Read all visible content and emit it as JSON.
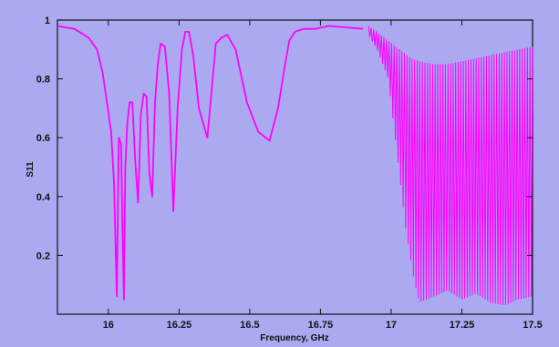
{
  "chart_data": {
    "type": "line",
    "title": "",
    "xlabel": "Frequency, GHz",
    "ylabel": "S11",
    "xlim": [
      15.82,
      17.5
    ],
    "ylim": [
      0,
      1
    ],
    "x_ticks": [
      "16",
      "16.25",
      "16.5",
      "16.75",
      "17",
      "17.25",
      "17.5"
    ],
    "y_ticks": [
      "0.2",
      "0.4",
      "0.6",
      "0.8",
      "1"
    ],
    "grid": false,
    "legend": "none",
    "series": [
      {
        "name": "",
        "color": "#ff00ff",
        "x": [
          15.82,
          15.88,
          15.93,
          15.96,
          15.98,
          15.995,
          16.01,
          16.02,
          16.03,
          16.037,
          16.045,
          16.05,
          16.055,
          16.06,
          16.067,
          16.075,
          16.085,
          16.095,
          16.105,
          16.115,
          16.125,
          16.135,
          16.145,
          16.155,
          16.165,
          16.175,
          16.185,
          16.2,
          16.215,
          16.23,
          16.245,
          16.26,
          16.272,
          16.285,
          16.3,
          16.32,
          16.35,
          16.38,
          16.4,
          16.42,
          16.45,
          16.49,
          16.53,
          16.57,
          16.6,
          16.625,
          16.64,
          16.66,
          16.69,
          16.73,
          16.78,
          16.84,
          16.9,
          16.93,
          16.96,
          16.99,
          17.0,
          17.03,
          17.06,
          17.1,
          17.15,
          17.2,
          17.25,
          17.3,
          17.35,
          17.4,
          17.45,
          17.5
        ],
        "y": [
          0.98,
          0.97,
          0.94,
          0.9,
          0.82,
          0.72,
          0.62,
          0.45,
          0.06,
          0.6,
          0.58,
          0.3,
          0.05,
          0.5,
          0.65,
          0.72,
          0.72,
          0.52,
          0.38,
          0.68,
          0.75,
          0.74,
          0.48,
          0.4,
          0.72,
          0.85,
          0.92,
          0.91,
          0.75,
          0.35,
          0.7,
          0.9,
          0.96,
          0.96,
          0.88,
          0.7,
          0.6,
          0.92,
          0.94,
          0.95,
          0.9,
          0.72,
          0.62,
          0.59,
          0.7,
          0.85,
          0.93,
          0.96,
          0.97,
          0.97,
          0.98,
          0.975,
          0.97,
          0.96,
          0.94,
          0.91,
          0.9,
          0.88,
          0.86,
          0.85,
          0.84,
          0.85,
          0.86,
          0.87,
          0.88,
          0.89,
          0.9,
          0.9
        ],
        "envelope_upper": {
          "x": [
            16.92,
            16.95,
            16.99,
            17.03,
            17.07,
            17.1,
            17.15,
            17.2,
            17.25,
            17.3,
            17.35,
            17.4,
            17.45,
            17.5
          ],
          "y": [
            0.98,
            0.96,
            0.93,
            0.9,
            0.87,
            0.86,
            0.85,
            0.85,
            0.86,
            0.87,
            0.88,
            0.89,
            0.9,
            0.91
          ]
        },
        "envelope_lower": {
          "x": [
            16.92,
            16.95,
            16.99,
            17.02,
            17.05,
            17.08,
            17.1,
            17.15,
            17.2,
            17.25,
            17.3,
            17.35,
            17.4,
            17.45,
            17.5
          ],
          "y": [
            0.95,
            0.9,
            0.8,
            0.55,
            0.3,
            0.12,
            0.04,
            0.06,
            0.08,
            0.05,
            0.07,
            0.04,
            0.03,
            0.05,
            0.06
          ]
        }
      }
    ]
  }
}
